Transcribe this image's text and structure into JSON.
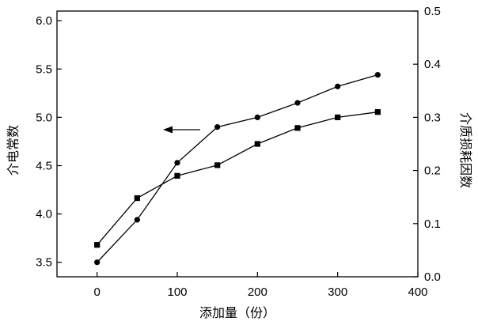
{
  "chart_data": {
    "type": "line",
    "title": "",
    "xlabel": "添加量（份）",
    "ylabel_left": "介电常数",
    "ylabel_right": "介质损耗因数",
    "xlim": [
      -50,
      400
    ],
    "ylim_left": [
      3.35,
      6.1
    ],
    "ylim_right": [
      0.0,
      0.5
    ],
    "x_ticks": [
      0,
      100,
      200,
      300,
      400
    ],
    "y_left_ticks": [
      3.5,
      4.0,
      4.5,
      5.0,
      5.5,
      6.0
    ],
    "y_right_ticks": [
      0.0,
      0.1,
      0.2,
      0.3,
      0.4,
      0.5
    ],
    "x_tick_labels": [
      "0",
      "100",
      "200",
      "300",
      "400"
    ],
    "y_left_tick_labels": [
      "3.5",
      "4.0",
      "4.5",
      "5.0",
      "5.5",
      "6.0"
    ],
    "y_right_tick_labels": [
      "0.0",
      "0.1",
      "0.2",
      "0.3",
      "0.4",
      "0.5"
    ],
    "grid": false,
    "legend": "none",
    "annotation": "arrow pointing left from the circle series toward the left axis",
    "series": [
      {
        "axis": "left",
        "marker": "circle",
        "color": "#000000",
        "x": [
          0,
          50,
          100,
          150,
          200,
          250,
          300,
          350
        ],
        "values": [
          3.5,
          3.94,
          4.53,
          4.9,
          5.0,
          5.15,
          5.32,
          5.44
        ]
      },
      {
        "axis": "right",
        "marker": "square",
        "color": "#000000",
        "x": [
          0,
          50,
          100,
          150,
          200,
          250,
          300,
          350
        ],
        "values": [
          0.06,
          0.148,
          0.19,
          0.21,
          0.25,
          0.28,
          0.3,
          0.31
        ]
      }
    ]
  }
}
